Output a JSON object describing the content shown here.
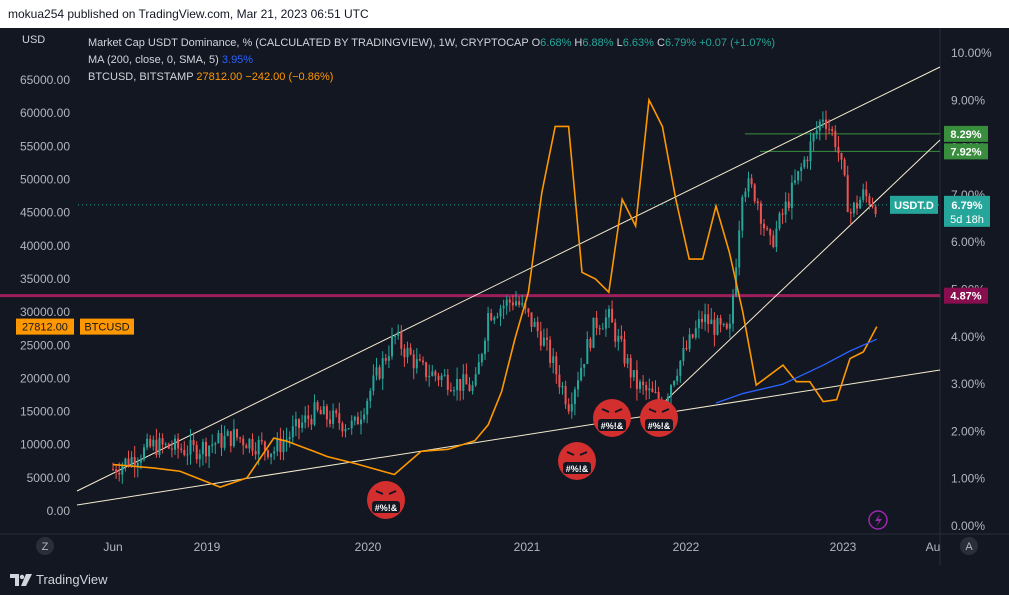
{
  "header": {
    "publisher": "mokua254 published on TradingView.com, Mar 21, 2023 06:51 UTC"
  },
  "legend": {
    "main_title": "Market Cap USDT Dominance, % (CALCULATED BY TRADINGVIEW), 1W, CRYPTOCAP",
    "o_label": "O",
    "o_value": "6.68%",
    "h_label": "H",
    "h_value": "6.88%",
    "l_label": "L",
    "l_value": "6.63%",
    "c_label": "C",
    "c_value": "6.79%",
    "change": "+0.07 (+1.07%)",
    "ma_label": "MA (200, close, 0, SMA, 5)",
    "ma_value": "3.95%",
    "btc_label": "BTCUSD, BITSTAMP",
    "btc_value": "27812.00",
    "btc_change": "−242.00 (−0.86%)"
  },
  "left_axis": {
    "unit": "USD",
    "ticks": [
      "65000.00",
      "60000.00",
      "55000.00",
      "50000.00",
      "45000.00",
      "40000.00",
      "35000.00",
      "30000.00",
      "25000.00",
      "20000.00",
      "15000.00",
      "10000.00",
      "5000.00",
      "0.00"
    ],
    "tag_value": "27812.00",
    "tag_label": "BTCUSD"
  },
  "right_axis": {
    "ticks": [
      "10.00%",
      "9.00%",
      "8.00%",
      "7.00%",
      "6.00%",
      "5.00%",
      "4.00%",
      "3.00%",
      "2.00%",
      "1.00%",
      "0.00%"
    ],
    "tags": {
      "green1": "8.29%",
      "green2": "7.92%",
      "current_label": "USDT.D",
      "current_value": "6.79%",
      "countdown": "5d 18h",
      "red": "4.87%"
    }
  },
  "time_axis": {
    "ticks": [
      "Jun",
      "2019",
      "2020",
      "2021",
      "2022",
      "2023",
      "Au"
    ]
  },
  "controls": {
    "z_label": "Z",
    "a_label": "A"
  },
  "emoji_caption": "#%!&",
  "footer": {
    "brand": "TradingView"
  },
  "colors": {
    "background": "#131722",
    "up": "#26a69a",
    "down": "#ef5350",
    "btc_line": "#ff9800",
    "ma_line": "#2962ff",
    "trend": "#f5eccd",
    "level_red": "#9c1f5c",
    "tag_green": "#388e3c",
    "tag_teal": "#26a69a",
    "tag_red": "#880e4f"
  },
  "chart_data": {
    "type": "line",
    "series": [
      {
        "name": "BTCUSD, BITSTAMP",
        "x": [
          "2018-06",
          "2018-09",
          "2018-11",
          "2019-02",
          "2019-04",
          "2019-06",
          "2019-07",
          "2019-09",
          "2019-10",
          "2019-12",
          "2020-03",
          "2020-05",
          "2020-07",
          "2020-09",
          "2020-10",
          "2020-11",
          "2020-12",
          "2021-01",
          "2021-02",
          "2021-03",
          "2021-04",
          "2021-05",
          "2021-06",
          "2021-07",
          "2021-08",
          "2021-09",
          "2021-10",
          "2021-11",
          "2021-12",
          "2022-01",
          "2022-02",
          "2022-03",
          "2022-04",
          "2022-05",
          "2022-06",
          "2022-08",
          "2022-09",
          "2022-10",
          "2022-11",
          "2022-12",
          "2023-01",
          "2023-02",
          "2023-03"
        ],
        "values": [
          7000,
          6500,
          6000,
          3600,
          5000,
          11000,
          10500,
          9000,
          8200,
          7200,
          5500,
          9000,
          9300,
          10600,
          13000,
          18000,
          26000,
          33000,
          48000,
          58000,
          58000,
          36000,
          35000,
          33000,
          47000,
          43000,
          62000,
          58000,
          47000,
          38000,
          38000,
          46000,
          39000,
          30000,
          19000,
          22000,
          19500,
          19500,
          16500,
          16800,
          23000,
          24000,
          27812
        ]
      },
      {
        "name": "Market Cap USDT Dominance, % (CALCULATED BY TRADINGVIEW), 1W, CRYPTOCAP",
        "x": [
          "2018-06",
          "2018-09",
          "2018-12",
          "2019-03",
          "2019-06",
          "2019-09",
          "2019-12",
          "2020-03",
          "2020-05",
          "2020-07",
          "2020-09",
          "2020-10",
          "2020-12",
          "2021-02",
          "2021-04",
          "2021-06",
          "2021-07",
          "2021-09",
          "2021-11",
          "2021-12",
          "2022-02",
          "2022-04",
          "2022-05",
          "2022-06",
          "2022-07",
          "2022-09",
          "2022-11",
          "2022-12",
          "2023-01",
          "2023-02",
          "2023-03"
        ],
        "values": [
          1.2,
          1.7,
          1.6,
          1.9,
          1.6,
          2.4,
          2.1,
          4.0,
          3.3,
          3.1,
          2.9,
          4.5,
          4.8,
          4.0,
          2.6,
          4.3,
          4.4,
          3.0,
          2.6,
          3.3,
          4.4,
          4.0,
          7.3,
          7.0,
          5.9,
          7.3,
          8.7,
          8.1,
          6.6,
          7.0,
          6.79
        ]
      },
      {
        "name": "MA (200, close, 0, SMA, 5)",
        "x": [
          "2022-03",
          "2022-05",
          "2022-08",
          "2022-11",
          "2023-01",
          "2023-03"
        ],
        "values": [
          2.6,
          2.8,
          3.0,
          3.4,
          3.7,
          3.95
        ]
      }
    ],
    "left_axis_range": [
      0,
      65000
    ],
    "right_axis_range": [
      0,
      10
    ],
    "levels": [
      8.29,
      7.92,
      4.87
    ],
    "grid": false
  }
}
